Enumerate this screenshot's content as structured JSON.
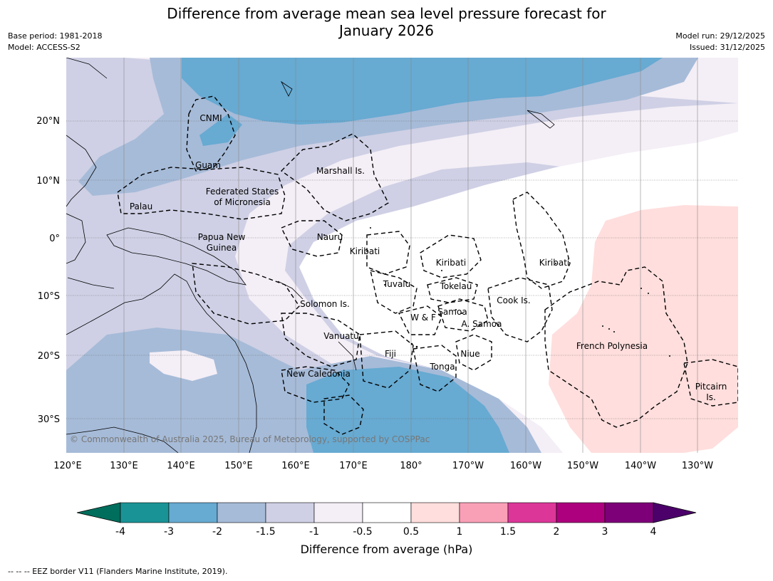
{
  "title": {
    "line1": "Difference from average mean sea level pressure forecast for",
    "line2": "January 2026"
  },
  "meta_left": [
    "Base period: 1981-2018",
    "Model: ACCESS-S2"
  ],
  "meta_right": [
    "Model run: 29/12/2025",
    "Issued: 31/12/2025"
  ],
  "axes": {
    "lat_labels": [
      "20°N",
      "10°N",
      "0°",
      "10°S",
      "20°S",
      "30°S"
    ],
    "lon_labels": [
      "120°E",
      "130°E",
      "140°E",
      "150°E",
      "160°E",
      "170°E",
      "180°",
      "170°W",
      "160°W",
      "150°W",
      "140°W",
      "130°W"
    ]
  },
  "regions": [
    "CNMI",
    "Guam",
    "Marshall Is.",
    "Federated States",
    "of Micronesia",
    "Palau",
    "Papua New",
    "Guinea",
    "Nauru",
    "Kiribati",
    "Kiribati",
    "Kiribati",
    "Tuvalu",
    "Tokelau",
    "Solomon Is.",
    "W & F",
    "Samoa",
    "A. Samoa",
    "Cook Is.",
    "Vanuatu",
    "Fiji",
    "Niue",
    "Tonga",
    "French Polynesia",
    "New Caledonia",
    "Pitcairn",
    "Is."
  ],
  "copyright": "© Commonwealth of Australia 2025, Bureau of Meteorology, supported by COSPPac",
  "colorbar": {
    "ticks": [
      "-4",
      "-3",
      "-2",
      "-1.5",
      "-1",
      "-0.5",
      "0.5",
      "1",
      "1.5",
      "2",
      "3",
      "4"
    ],
    "colors": {
      "lt_-4": "#006e5c",
      "-4_-3": "#1a9396",
      "-3_-2": "#67aad2",
      "-2_-1.5": "#a6bbd8",
      "-1.5_-1": "#cfd0e5",
      "-1_-0.5": "#f4eef6",
      "-0.5_0.5": "#ffffff",
      "0.5_1": "#ffdedd",
      "1_1.5": "#f9a0b7",
      "1.5_2": "#dc3699",
      "2_3": "#ac007e",
      "3_4": "#7d0079",
      "gt_4": "#4b006a"
    },
    "label": "Difference from average (hPa)"
  },
  "footer": "--  --  -- EEZ border V11 (Flanders Marine Institute, 2019)."
}
